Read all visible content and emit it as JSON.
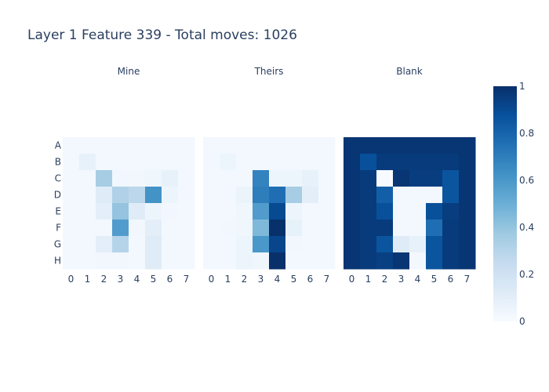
{
  "chart_data": {
    "type": "heatmap",
    "title": "Layer 1 Feature 339 - Total moves: 1026",
    "row_labels": [
      "A",
      "B",
      "C",
      "D",
      "E",
      "F",
      "G",
      "H"
    ],
    "col_labels": [
      "0",
      "1",
      "2",
      "3",
      "4",
      "5",
      "6",
      "7"
    ],
    "colorscale": "Blues",
    "zlim": [
      0,
      1
    ],
    "colorbar_ticks": [
      "0",
      "0.2",
      "0.4",
      "0.6",
      "0.8",
      "1"
    ],
    "panels": [
      {
        "name": "Mine",
        "z": [
          [
            0.02,
            0.02,
            0.02,
            0.02,
            0.02,
            0.02,
            0.02,
            0.02
          ],
          [
            0.02,
            0.08,
            0.02,
            0.02,
            0.02,
            0.02,
            0.02,
            0.02
          ],
          [
            0.02,
            0.02,
            0.35,
            0.03,
            0.03,
            0.04,
            0.08,
            0.02
          ],
          [
            0.02,
            0.02,
            0.12,
            0.32,
            0.28,
            0.62,
            0.05,
            0.02
          ],
          [
            0.02,
            0.02,
            0.1,
            0.4,
            0.12,
            0.05,
            0.03,
            0.02
          ],
          [
            0.02,
            0.02,
            0.02,
            0.58,
            0.03,
            0.1,
            0.02,
            0.02
          ],
          [
            0.02,
            0.02,
            0.1,
            0.3,
            0.02,
            0.12,
            0.02,
            0.02
          ],
          [
            0.02,
            0.02,
            0.03,
            0.03,
            0.02,
            0.12,
            0.02,
            0.02
          ]
        ]
      },
      {
        "name": "Theirs",
        "z": [
          [
            0.02,
            0.02,
            0.02,
            0.02,
            0.02,
            0.02,
            0.02,
            0.02
          ],
          [
            0.02,
            0.05,
            0.02,
            0.02,
            0.02,
            0.02,
            0.02,
            0.02
          ],
          [
            0.02,
            0.02,
            0.02,
            0.68,
            0.05,
            0.05,
            0.08,
            0.02
          ],
          [
            0.02,
            0.02,
            0.06,
            0.7,
            0.76,
            0.35,
            0.1,
            0.02
          ],
          [
            0.02,
            0.02,
            0.04,
            0.58,
            0.9,
            0.05,
            0.02,
            0.02
          ],
          [
            0.02,
            0.03,
            0.04,
            0.45,
            1.0,
            0.08,
            0.02,
            0.02
          ],
          [
            0.02,
            0.02,
            0.05,
            0.6,
            0.92,
            0.03,
            0.02,
            0.02
          ],
          [
            0.02,
            0.02,
            0.05,
            0.04,
            1.0,
            0.02,
            0.02,
            0.02
          ]
        ]
      },
      {
        "name": "Blank",
        "z": [
          [
            0.98,
            0.98,
            0.98,
            0.98,
            0.98,
            0.98,
            0.98,
            0.98
          ],
          [
            0.98,
            0.88,
            0.96,
            0.96,
            0.96,
            0.96,
            0.96,
            0.98
          ],
          [
            0.98,
            0.96,
            0.0,
            0.98,
            0.95,
            0.95,
            0.86,
            0.98
          ],
          [
            0.98,
            0.96,
            0.82,
            0.02,
            0.02,
            0.02,
            0.86,
            0.98
          ],
          [
            0.98,
            0.96,
            0.88,
            0.02,
            0.02,
            0.88,
            0.95,
            0.98
          ],
          [
            0.98,
            0.96,
            0.96,
            0.02,
            0.02,
            0.76,
            0.96,
            0.98
          ],
          [
            0.98,
            0.96,
            0.86,
            0.12,
            0.08,
            0.86,
            0.96,
            0.98
          ],
          [
            0.98,
            0.96,
            0.94,
            0.98,
            0.02,
            0.86,
            0.96,
            0.98
          ]
        ]
      }
    ]
  }
}
